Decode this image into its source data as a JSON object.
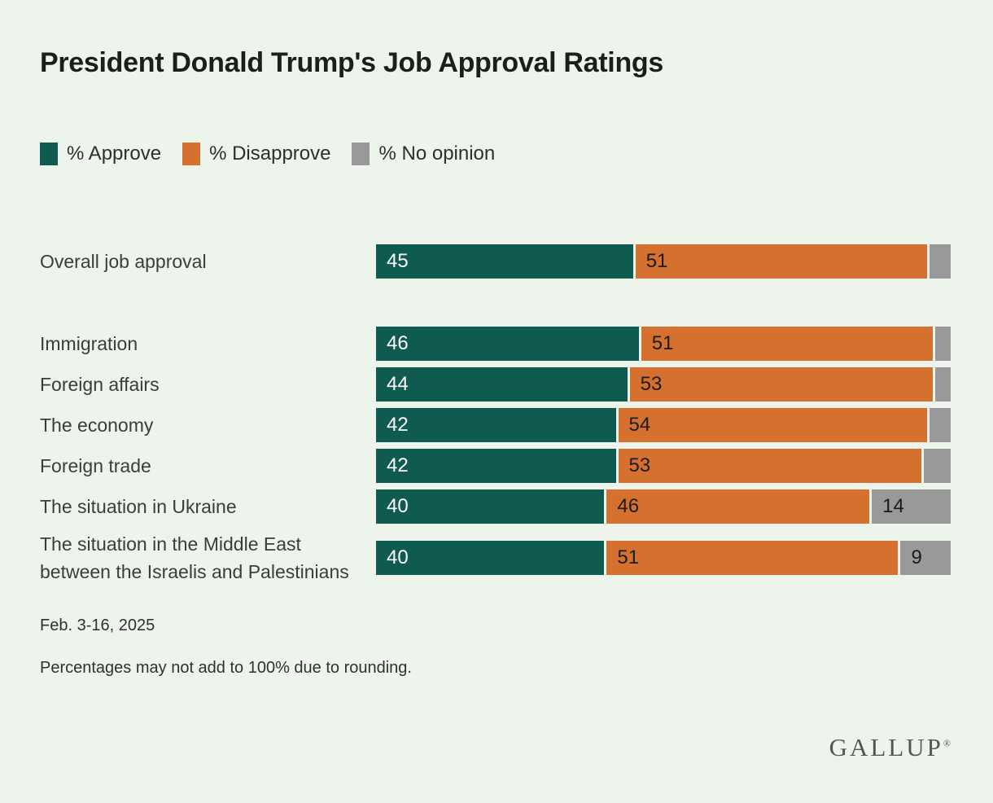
{
  "title": "President Donald Trump's Job Approval Ratings",
  "colors": {
    "background": "#edf4ec",
    "approve": "#0f5b50",
    "disapprove": "#d6702f",
    "no_opinion": "#999999"
  },
  "chart_data": {
    "type": "bar",
    "orientation": "horizontal",
    "stacked": true,
    "xlim": [
      0,
      100
    ],
    "legend_position": "top-left",
    "categories": [
      "Overall job approval",
      "Immigration",
      "Foreign affairs",
      "The economy",
      "Foreign trade",
      "The situation in Ukraine",
      "The situation in the Middle East between the Israelis and Palestinians"
    ],
    "series": [
      {
        "name": "% Approve",
        "color": "#0f5b50",
        "values": [
          45,
          46,
          44,
          42,
          42,
          40,
          40
        ]
      },
      {
        "name": "% Disapprove",
        "color": "#d6702f",
        "values": [
          51,
          51,
          53,
          54,
          53,
          46,
          51
        ]
      },
      {
        "name": "% No opinion",
        "color": "#999999",
        "values": [
          4,
          3,
          3,
          4,
          5,
          14,
          9
        ],
        "value_labels_shown": [
          false,
          false,
          false,
          false,
          false,
          true,
          true
        ]
      }
    ]
  },
  "footnotes": {
    "date": "Feb. 3-16, 2025",
    "note": "Percentages may not add to 100% due to rounding."
  },
  "logo": {
    "text": "GALLUP",
    "registered": "®"
  }
}
